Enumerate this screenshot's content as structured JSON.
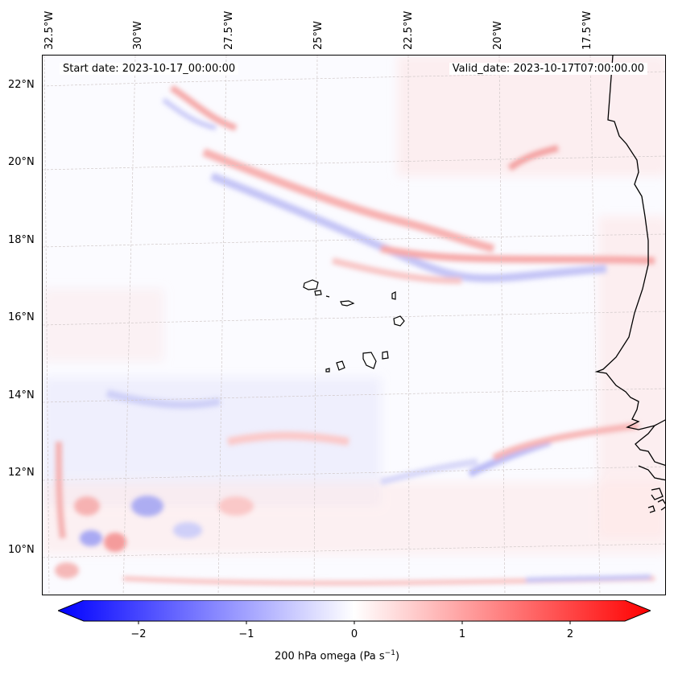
{
  "map": {
    "start_date": "Start date: 2023-10-17_00:00:00",
    "valid_date": "Valid_date: 2023-10-17T07:00:00.00",
    "longitude_labels": [
      "32.5°W",
      "30°W",
      "27.5°W",
      "25°W",
      "22.5°W",
      "20°W",
      "17.5°W"
    ],
    "latitude_labels": [
      "22°N",
      "20°N",
      "18°N",
      "16°N",
      "14°N",
      "12°N",
      "10°N"
    ]
  },
  "colorbar": {
    "ticks": [
      "−2",
      "−1",
      "0",
      "1",
      "2"
    ],
    "label_main": "200 hPa omega (Pa s",
    "label_exp": "−1",
    "label_close": ")",
    "min": -2.6,
    "max": 2.6,
    "colors": {
      "negative": "#0000ff",
      "neutral": "#ffffff",
      "positive": "#ff0000"
    }
  }
}
